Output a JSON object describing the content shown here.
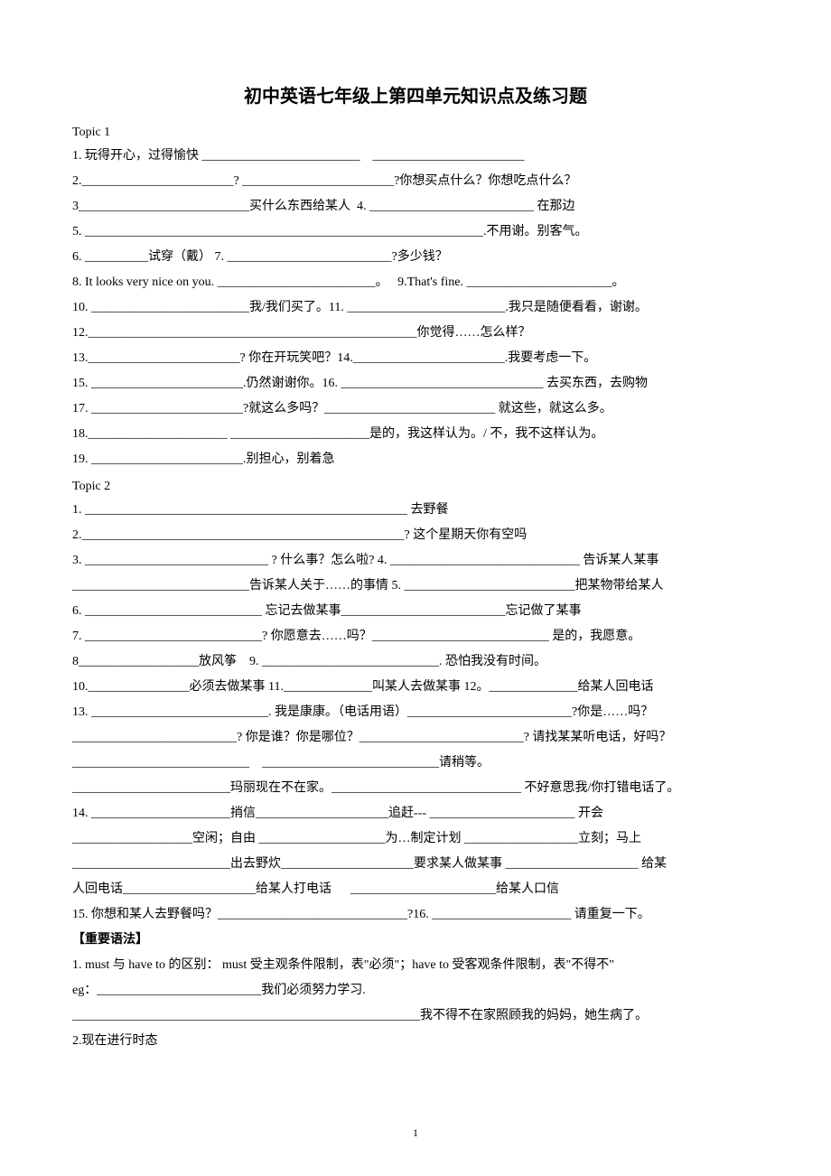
{
  "title": "初中英语七年级上第四单元知识点及练习题",
  "topic1": {
    "header": "Topic 1",
    "lines": [
      "1. 玩得开心，过得愉快 _________________________    ________________________",
      "2.________________________? ________________________?你想买点什么？你想吃点什么？",
      "3___________________________买什么东西给某人  4. __________________________ 在那边",
      "5. _______________________________________________________________.不用谢。别客气。",
      "6. __________试穿（戴） 7. __________________________?多少钱？",
      "8. It looks very nice on you. _________________________。   9.That's fine. _______________________。",
      "10. _________________________我/我们买了。11. _________________________.我只是随便看看，谢谢。",
      "12.____________________________________________________你觉得……怎么样？",
      "13.________________________? 你在开玩笑吧？14.________________________.我要考虑一下。",
      "15. ________________________.仍然谢谢你。16. ________________________________ 去买东西，去购物",
      "17. ________________________?就这么多吗？___________________________ 就这些，就这么多。",
      "18.______________________ ______________________是的，我这样认为。/ 不，我不这样认为。",
      "19. ________________________.别担心，别着急"
    ]
  },
  "topic2": {
    "header": "Topic 2",
    "lines": [
      "1. ___________________________________________________ 去野餐",
      "2.___________________________________________________? 这个星期天你有空吗",
      "3. _____________________________ ? 什么事？怎么啦? 4. ______________________________ 告诉某人某事",
      "____________________________告诉某人关于……的事情 5. ___________________________把某物带给某人",
      "6. ____________________________ 忘记去做某事__________________________忘记做了某事",
      "7. ____________________________? 你愿意去……吗？____________________________ 是的，我愿意。",
      "8___________________放风筝    9. ____________________________. 恐怕我没有时间。",
      "10.________________必须去做某事 11.______________叫某人去做某事 12。______________给某人回电话",
      "13. ____________________________. 我是康康。（电话用语）__________________________?你是……吗？",
      "__________________________? 你是谁？你是哪位？__________________________? 请找某某听电话，好吗？",
      "____________________________    ____________________________请稍等。",
      "_________________________玛丽现在不在家。______________________________ 不好意思我/你打错电话了。",
      "14. ______________________捎信_____________________追赶--- _______________________ 开会",
      "___________________空闲；自由 ____________________为…制定计划 __________________立刻；马上",
      "",
      "_________________________出去野炊_____________________要求某人做某事 _____________________ 给某",
      "人回电话_____________________给某人打电话      _______________________给某人口信",
      "15. 你想和某人去野餐吗？______________________________?16. ______________________ 请重复一下。"
    ]
  },
  "grammar": {
    "heading": "【重要语法】",
    "lines": [
      "1. must 与 have to 的区别：  must 受主观条件限制，表\"必须\"；have to 受客观条件限制，表\"不得不\"",
      "eg：__________________________我们必须努力学习.",
      "_______________________________________________________我不得不在家照顾我的妈妈，她生病了。",
      "2.现在进行时态"
    ]
  },
  "pageNumber": "1"
}
